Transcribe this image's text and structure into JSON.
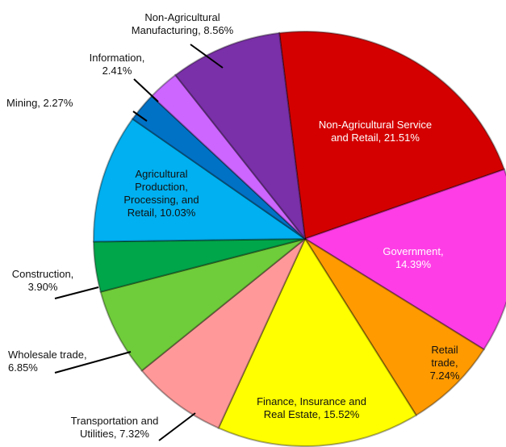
{
  "chart_data": {
    "type": "pie",
    "labels": [
      "Non-Agricultural Service and Retail, 21.51%",
      "Government, 14.39%",
      "Retail trade, 7.24%",
      "Finance, Insurance and Real Estate, 15.52%",
      "Transportation and Utilities, 7.32%",
      "Wholesale trade, 6.85%",
      "Construction, 3.90%",
      "Agricultural Production, Processing, and Retail, 10.03%",
      "Mining, 2.27%",
      "Information, 2.41%",
      "Non-Agricultural Manufacturing, 8.56%"
    ],
    "values": [
      21.51,
      14.39,
      7.24,
      15.52,
      7.32,
      6.85,
      3.9,
      10.03,
      2.27,
      2.41,
      8.56
    ],
    "colors": [
      "#d40000",
      "#ff3de6",
      "#ff9a00",
      "#ffff00",
      "#ff9999",
      "#6fcc3a",
      "#00a64a",
      "#00b0f0",
      "#0072c6",
      "#cc66ff",
      "#7a30a8"
    ]
  }
}
